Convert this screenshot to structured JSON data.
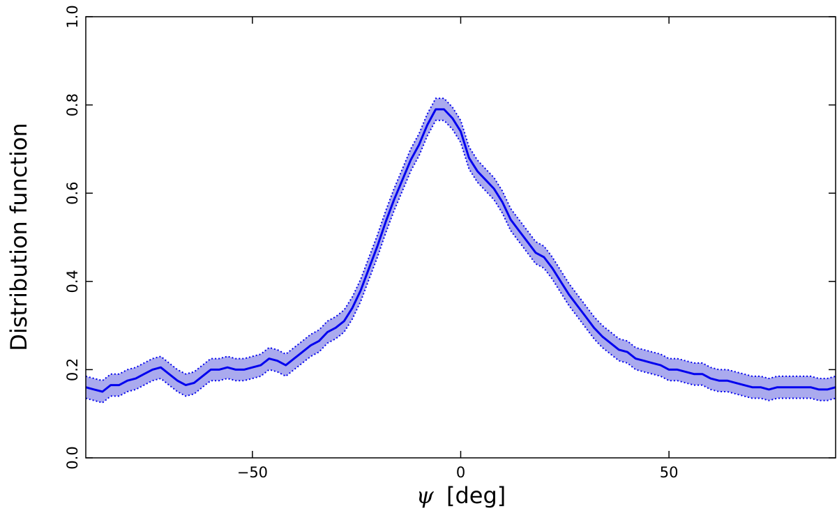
{
  "chart_data": {
    "type": "line",
    "title": "",
    "xlabel_symbol": "ψ",
    "xlabel_unit": "[deg]",
    "ylabel": "Distribution function",
    "xlim": [
      -90,
      90
    ],
    "ylim": [
      0.0,
      1.0
    ],
    "x_ticks": [
      -50,
      0,
      50
    ],
    "x_tick_labels": [
      "−50",
      "0",
      "50"
    ],
    "y_ticks": [
      0.0,
      0.2,
      0.4,
      0.6,
      0.8,
      1.0
    ],
    "y_tick_labels": [
      "0.0",
      "0.2",
      "0.4",
      "0.6",
      "0.8",
      "1.0"
    ],
    "grid": false,
    "band_halfwidth": 0.025,
    "colors": {
      "line": "#0000ee",
      "band_fill": "#aaaaee",
      "band_edge": "#0000ee",
      "axes": "#000000"
    },
    "series": [
      {
        "x": [
          -90,
          -88,
          -86,
          -84,
          -82,
          -80,
          -78,
          -76,
          -74,
          -72,
          -70,
          -68,
          -66,
          -64,
          -62,
          -60,
          -58,
          -56,
          -54,
          -52,
          -50,
          -48,
          -46,
          -44,
          -42,
          -40,
          -38,
          -36,
          -34,
          -32,
          -30,
          -28,
          -26,
          -24,
          -22,
          -20,
          -18,
          -16,
          -14,
          -12,
          -10,
          -8,
          -6,
          -4,
          -2,
          0,
          2,
          4,
          6,
          8,
          10,
          12,
          14,
          16,
          18,
          20,
          22,
          24,
          26,
          28,
          30,
          32,
          34,
          36,
          38,
          40,
          42,
          44,
          46,
          48,
          50,
          52,
          54,
          56,
          58,
          60,
          62,
          64,
          66,
          68,
          70,
          72,
          74,
          76,
          78,
          80,
          82,
          84,
          86,
          88,
          90
        ],
        "y": [
          0.16,
          0.155,
          0.15,
          0.165,
          0.165,
          0.175,
          0.18,
          0.19,
          0.2,
          0.205,
          0.19,
          0.175,
          0.165,
          0.17,
          0.185,
          0.2,
          0.2,
          0.205,
          0.2,
          0.2,
          0.205,
          0.21,
          0.225,
          0.22,
          0.21,
          0.225,
          0.24,
          0.255,
          0.265,
          0.285,
          0.295,
          0.31,
          0.34,
          0.38,
          0.43,
          0.48,
          0.535,
          0.585,
          0.63,
          0.675,
          0.71,
          0.755,
          0.79,
          0.79,
          0.77,
          0.74,
          0.68,
          0.65,
          0.63,
          0.61,
          0.58,
          0.54,
          0.515,
          0.49,
          0.465,
          0.455,
          0.43,
          0.4,
          0.37,
          0.345,
          0.32,
          0.295,
          0.275,
          0.26,
          0.245,
          0.24,
          0.225,
          0.22,
          0.215,
          0.21,
          0.2,
          0.2,
          0.195,
          0.19,
          0.19,
          0.18,
          0.175,
          0.175,
          0.17,
          0.165,
          0.16,
          0.16,
          0.155,
          0.16,
          0.16,
          0.16,
          0.16,
          0.16,
          0.155,
          0.155,
          0.16
        ]
      }
    ]
  }
}
